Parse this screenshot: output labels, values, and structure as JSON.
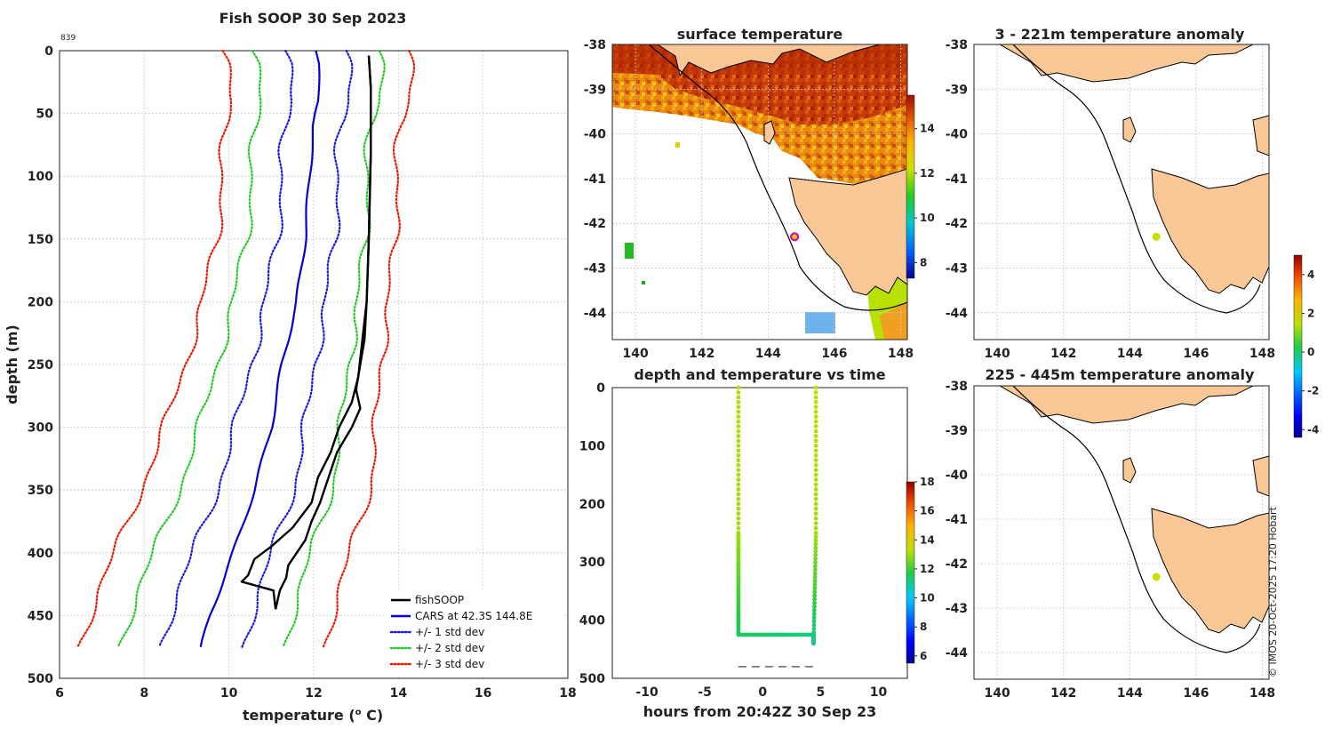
{
  "colors": {
    "cars": "#0000dd",
    "std1": "#1a1ae6",
    "std2": "#22cc22",
    "std3": "#ee1a00",
    "fish": "#000000",
    "land": "#f9c896",
    "contour": "#000000",
    "track": "#c8d400"
  },
  "panels": {
    "profile": {
      "title": "Fish SOOP 30 Sep 2023",
      "corner_label": "839"
    },
    "sst": {
      "title": "surface temperature"
    },
    "timeseries": {
      "title": "depth and temperature vs time"
    },
    "anom1": {
      "title": "3 - 221m temperature anomaly"
    },
    "anom2": {
      "title": "225 - 445m temperature anomaly"
    }
  },
  "watermark": "© IMOS 20-Oct-2025 17:20 Hobart",
  "legend": [
    {
      "label": "fishSOOP",
      "style": "solid",
      "color": "#000000"
    },
    {
      "label": "CARS at 42.3S 144.8E",
      "style": "solid",
      "color": "#0000dd"
    },
    {
      "label": "+/- 1 std dev",
      "style": "dotted",
      "color": "#1a1ae6"
    },
    {
      "label": "+/- 2 std dev",
      "style": "dotted",
      "color": "#22cc22"
    },
    {
      "label": "+/- 3 std dev",
      "style": "dotted",
      "color": "#ee1a00"
    }
  ],
  "colorbars": {
    "sst": {
      "ticks": [
        "14",
        "12",
        "10",
        "8"
      ],
      "ticks_values": [
        14,
        12,
        10,
        8
      ],
      "range": [
        7.3,
        15.5
      ]
    },
    "time": {
      "ticks": [
        "18",
        "16",
        "14",
        "12",
        "10",
        "8",
        "6"
      ],
      "ticks_values": [
        18,
        16,
        14,
        12,
        10,
        8,
        6
      ],
      "range": [
        5.5,
        18
      ]
    },
    "anom": {
      "ticks": [
        "4",
        "2",
        "0",
        "-2",
        "-4"
      ],
      "ticks_values": [
        4,
        2,
        0,
        -2,
        -4
      ],
      "range": [
        -4.4,
        5
      ]
    }
  },
  "chart_data": [
    {
      "type": "line",
      "title": "Fish SOOP 30 Sep 2023",
      "xlabel": "temperature (",
      "xlabel_unit": "o",
      "xlabel_suffix": " C)",
      "ylabel": "depth (m)",
      "xlim": [
        6,
        18
      ],
      "ylim": [
        0,
        500
      ],
      "xticks": [
        6,
        8,
        10,
        12,
        14,
        16,
        18
      ],
      "xtick_labels": [
        "6",
        "8",
        "10",
        "12",
        "14",
        "16",
        "18"
      ],
      "yticks": [
        0,
        50,
        100,
        150,
        200,
        250,
        300,
        350,
        400,
        450,
        500
      ],
      "ytick_labels": [
        "0",
        "50",
        "100",
        "150",
        "200",
        "250",
        "300",
        "350",
        "400",
        "450",
        "500"
      ],
      "cars_depth": [
        0,
        10,
        40,
        60,
        100,
        150,
        200,
        250,
        300,
        350,
        400,
        450,
        475
      ],
      "cars_temp": [
        12.05,
        12.1,
        12.12,
        12.0,
        11.9,
        11.8,
        11.6,
        11.25,
        11.0,
        10.6,
        10.1,
        9.55,
        9.35
      ],
      "std_offsets": {
        "1": [
          0.72,
          0.65,
          0.68,
          0.75,
          0.9,
          0.98
        ],
        "2": [
          1.5,
          1.35,
          1.4,
          1.55,
          1.8,
          1.95
        ],
        "3": [
          2.2,
          2.05,
          2.1,
          2.3,
          2.7,
          2.9
        ]
      },
      "std_depths": [
        0,
        60,
        150,
        250,
        350,
        475
      ],
      "fish_down": {
        "depth": [
          4,
          30,
          80,
          150,
          200,
          230,
          260,
          280,
          300,
          320,
          340,
          360,
          380,
          395,
          405,
          418,
          423,
          430,
          445
        ],
        "temp": [
          13.3,
          13.35,
          13.35,
          13.3,
          13.25,
          13.15,
          13.05,
          12.9,
          12.6,
          12.4,
          12.1,
          11.95,
          11.5,
          11.0,
          10.6,
          10.45,
          10.3,
          11.05,
          11.1
        ]
      },
      "fish_up": {
        "depth": [
          445,
          430,
          420,
          410,
          400,
          390,
          375,
          360,
          340,
          320,
          300,
          285,
          270,
          250,
          230,
          200,
          150,
          80,
          30,
          4
        ],
        "temp": [
          11.1,
          11.2,
          11.35,
          11.4,
          11.6,
          11.8,
          11.95,
          12.15,
          12.35,
          12.55,
          12.9,
          13.1,
          13.0,
          13.1,
          13.2,
          13.25,
          13.3,
          13.35,
          13.35,
          13.3
        ]
      }
    },
    {
      "type": "heatmap",
      "title": "surface temperature",
      "xlim": [
        139.3,
        148.2
      ],
      "ylim": [
        -44.6,
        -38
      ],
      "xticks": [
        140,
        142,
        144,
        146,
        148
      ],
      "xtick_labels": [
        "140",
        "142",
        "144",
        "146",
        "148"
      ],
      "yticks": [
        -38,
        -39,
        -40,
        -41,
        -42,
        -43,
        -44
      ],
      "ytick_labels": [
        "-38",
        "-39",
        "-40",
        "-41",
        "-42",
        "-43",
        "-44"
      ],
      "marker": {
        "lon": 144.8,
        "lat": -42.3
      }
    },
    {
      "type": "scatter",
      "title": "depth and temperature vs time",
      "xlabel": "hours from 20:42Z 30 Sep 23",
      "xlim": [
        -13,
        12.5
      ],
      "ylim": [
        0,
        500
      ],
      "xticks": [
        -10,
        -5,
        0,
        5,
        10
      ],
      "xtick_labels": [
        "-10",
        "-5",
        "0",
        "5",
        "10"
      ],
      "yticks": [
        0,
        100,
        200,
        300,
        400,
        500
      ],
      "ytick_labels": [
        "0",
        "100",
        "200",
        "300",
        "400",
        "500"
      ],
      "path_hours": [
        -2.1,
        -2.1,
        -2.1,
        -2.1,
        4.4,
        4.4,
        4.6,
        4.6
      ],
      "path_depth": [
        0,
        250,
        330,
        425,
        425,
        440,
        250,
        0
      ],
      "path_temp": [
        13.2,
        13.0,
        12.3,
        11.5,
        11.2,
        11.1,
        13.0,
        13.3
      ],
      "seafloor_depth": 480,
      "seafloor_hours": [
        -2.1,
        4.6
      ]
    },
    {
      "type": "heatmap",
      "title": "3 - 221m temperature anomaly",
      "xlim": [
        139.3,
        148.2
      ],
      "ylim": [
        -44.6,
        -38
      ],
      "xticks": [
        140,
        142,
        144,
        146,
        148
      ],
      "xtick_labels": [
        "140",
        "142",
        "144",
        "146",
        "148"
      ],
      "yticks": [
        -38,
        -39,
        -40,
        -41,
        -42,
        -43,
        -44
      ],
      "ytick_labels": [
        "-38",
        "-39",
        "-40",
        "-41",
        "-42",
        "-43",
        "-44"
      ],
      "marker": {
        "lon": 144.8,
        "lat": -42.3,
        "anomaly": 1.0
      }
    },
    {
      "type": "heatmap",
      "title": "225 - 445m temperature anomaly",
      "xlim": [
        139.3,
        148.2
      ],
      "ylim": [
        -44.6,
        -38
      ],
      "xticks": [
        140,
        142,
        144,
        146,
        148
      ],
      "xtick_labels": [
        "140",
        "142",
        "144",
        "146",
        "148"
      ],
      "yticks": [
        -38,
        -39,
        -40,
        -41,
        -42,
        -43,
        -44
      ],
      "ytick_labels": [
        "-38",
        "-39",
        "-40",
        "-41",
        "-42",
        "-43",
        "-44"
      ],
      "marker": {
        "lon": 144.8,
        "lat": -42.3,
        "anomaly": 1.1
      }
    }
  ]
}
